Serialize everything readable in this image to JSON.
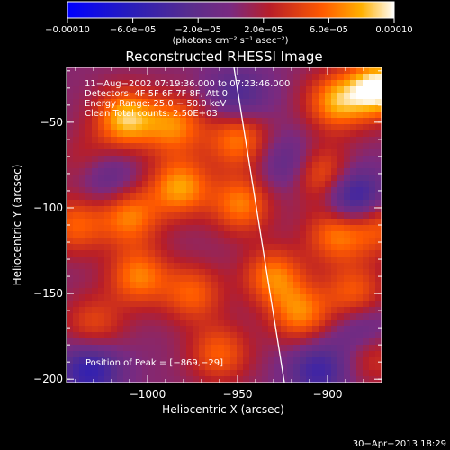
{
  "chart_data": {
    "type": "heatmap",
    "title": "Reconstructed RHESSI Image",
    "xlabel": "Heliocentric X (arcsec)",
    "ylabel": "Heliocentric Y (arcsec)",
    "xlim": [
      -1045,
      -870
    ],
    "ylim": [
      -202,
      -18
    ],
    "x_ticks": [
      {
        "value": -1000,
        "label": "−1000"
      },
      {
        "value": -950,
        "label": "−950"
      },
      {
        "value": -900,
        "label": "−900"
      }
    ],
    "y_ticks": [
      {
        "value": -50,
        "label": "−50"
      },
      {
        "value": -100,
        "label": "−100"
      },
      {
        "value": -150,
        "label": "−150"
      },
      {
        "value": -200,
        "label": "−200"
      }
    ],
    "colorbar": {
      "min": -0.0001,
      "max": 0.0001,
      "tick_labels": [
        "−0.00010",
        "−6.0e−05",
        "−2.0e−05",
        "2.0e−05",
        "6.0e−05",
        "0.00010"
      ],
      "unit_label": "(photons cm⁻² s⁻¹ asec⁻²)"
    },
    "annotations": [
      "11−Aug−2002 07:19:36.000 to 07:23:46.000",
      "Detectors: 4F 5F 6F 7F 8F, Att 0",
      "Energy Range: 25.0 − 50.0 keV",
      "Clean     Total counts: 2.50E+03"
    ],
    "peak_label": "Position of Peak = [−869,−29]",
    "peak": {
      "x": -869,
      "y": -29
    },
    "limb_line": [
      {
        "x": -952,
        "y": -18
      },
      {
        "x": -924,
        "y": -202
      }
    ],
    "bright_spots": [
      {
        "x": -871,
        "y": -30,
        "value": 0.0001
      },
      {
        "x": -895,
        "y": -38,
        "value": 7e-05
      },
      {
        "x": -1012,
        "y": -48,
        "value": 8e-05
      },
      {
        "x": -985,
        "y": -52,
        "value": 6e-05
      },
      {
        "x": -950,
        "y": -60,
        "value": 6e-05
      },
      {
        "x": -1030,
        "y": -75,
        "value": 5e-05
      },
      {
        "x": -982,
        "y": -88,
        "value": 7e-05
      },
      {
        "x": -905,
        "y": -80,
        "value": 6e-05
      },
      {
        "x": -1040,
        "y": -110,
        "value": 5e-05
      },
      {
        "x": -1010,
        "y": -105,
        "value": 6e-05
      },
      {
        "x": -948,
        "y": -98,
        "value": 6e-05
      },
      {
        "x": -895,
        "y": -115,
        "value": 6e-05
      },
      {
        "x": -872,
        "y": -110,
        "value": 5e-05
      },
      {
        "x": -1005,
        "y": -140,
        "value": 6e-05
      },
      {
        "x": -975,
        "y": -150,
        "value": 5e-05
      },
      {
        "x": -930,
        "y": -140,
        "value": 6e-05
      },
      {
        "x": -915,
        "y": -162,
        "value": 6e-05
      },
      {
        "x": -885,
        "y": -150,
        "value": 5e-05
      },
      {
        "x": -1030,
        "y": -168,
        "value": 4e-05
      },
      {
        "x": -960,
        "y": -185,
        "value": 5e-05
      },
      {
        "x": -875,
        "y": -185,
        "value": 4e-05
      }
    ],
    "dark_spots": [
      {
        "x": -1025,
        "y": -80,
        "value": -6e-05
      },
      {
        "x": -885,
        "y": -95,
        "value": -7e-05
      },
      {
        "x": -920,
        "y": -75,
        "value": -4e-05
      },
      {
        "x": -1032,
        "y": -195,
        "value": -6e-05
      },
      {
        "x": -905,
        "y": -195,
        "value": -5e-05
      },
      {
        "x": -880,
        "y": -172,
        "value": -4e-05
      },
      {
        "x": -950,
        "y": -35,
        "value": -4e-05
      }
    ],
    "grid": false,
    "legend": "none"
  },
  "footer": {
    "timestamp": "30−Apr−2013 18:29"
  }
}
